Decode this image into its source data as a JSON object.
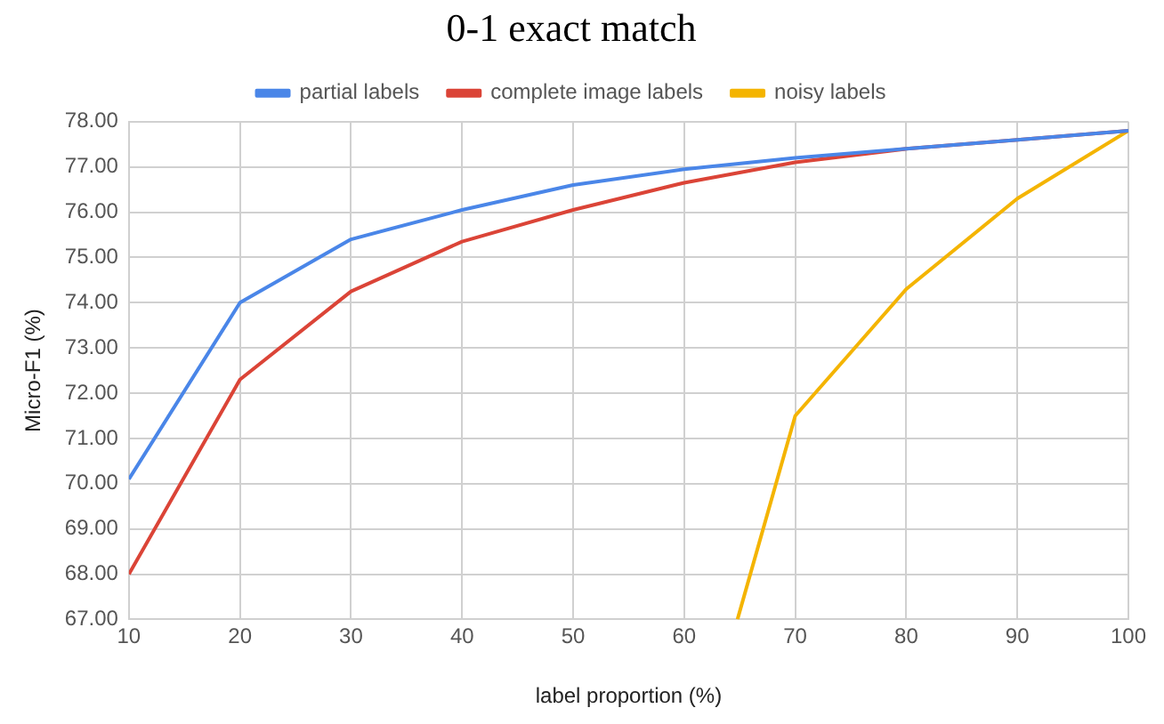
{
  "chart_data": {
    "type": "line",
    "title": "0-1 exact match",
    "xlabel": "label proportion (%)",
    "ylabel": "Micro-F1 (%)",
    "x": [
      10,
      20,
      30,
      40,
      50,
      60,
      70,
      80,
      90,
      100
    ],
    "series": [
      {
        "name": "partial labels",
        "color": "#4a86e8",
        "values": [
          70.1,
          74.0,
          75.4,
          76.05,
          76.6,
          76.95,
          77.2,
          77.4,
          77.6,
          77.8
        ]
      },
      {
        "name": "complete image labels",
        "color": "#db4437",
        "values": [
          68.0,
          72.3,
          74.25,
          75.35,
          76.05,
          76.65,
          77.1,
          77.4,
          77.6,
          77.8
        ]
      },
      {
        "name": "noisy labels",
        "color": "#f4b400",
        "x": [
          64.8,
          70,
          80,
          90,
          100
        ],
        "values": [
          67,
          71.5,
          74.3,
          76.3,
          77.8
        ]
      }
    ],
    "xlim": [
      10,
      100
    ],
    "xticks": [
      10,
      20,
      30,
      40,
      50,
      60,
      70,
      80,
      90,
      100
    ],
    "ylim": [
      67,
      78
    ],
    "yticks": [
      {
        "value": 67,
        "label": "67.00"
      },
      {
        "value": 68,
        "label": "68.00"
      },
      {
        "value": 69,
        "label": "69.00"
      },
      {
        "value": 70,
        "label": "70.00"
      },
      {
        "value": 71,
        "label": "71.00"
      },
      {
        "value": 72,
        "label": "72.00"
      },
      {
        "value": 73,
        "label": "73.00"
      },
      {
        "value": 74,
        "label": "74.00"
      },
      {
        "value": 75,
        "label": "75.00"
      },
      {
        "value": 76,
        "label": "76.00"
      },
      {
        "value": 77,
        "label": "77.00"
      },
      {
        "value": 78,
        "label": "78.00"
      }
    ],
    "grid": true,
    "legend": "top",
    "marker": "none",
    "line_style": "solid"
  }
}
